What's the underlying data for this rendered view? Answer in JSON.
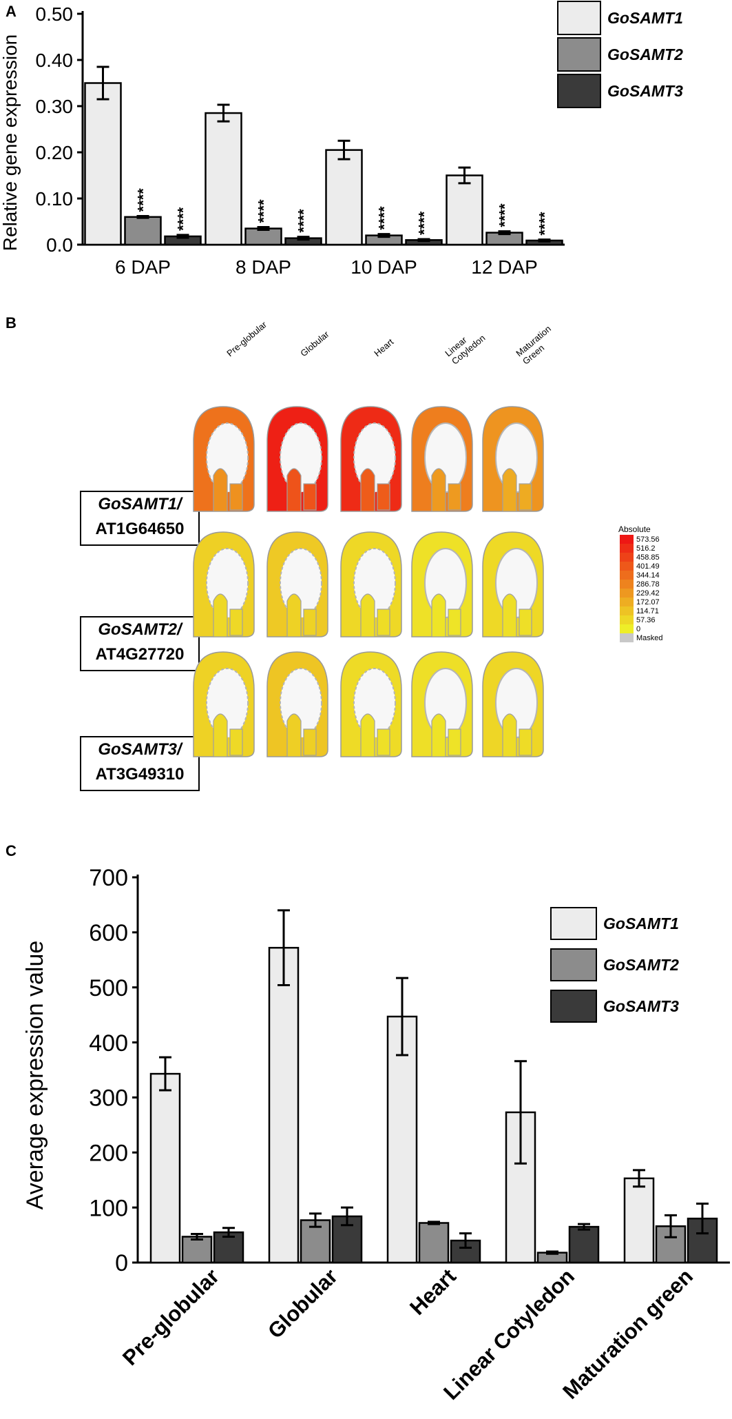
{
  "colors": {
    "gosamt1": "#ececec",
    "gosamt2": "#8c8c8c",
    "gosamt3": "#3a3a3a"
  },
  "panel_a": {
    "letter": "A",
    "chart_data": {
      "type": "bar",
      "title": "",
      "xlabel": "",
      "ylabel": "Relative gene expression",
      "ylim": [
        0,
        0.5
      ],
      "yticks": [
        "0.0",
        "0.10",
        "0.20",
        "0.30",
        "0.40",
        "0.50"
      ],
      "tick_values": [
        0,
        0.1,
        0.2,
        0.3,
        0.4,
        0.5
      ],
      "categories": [
        "6 DAP",
        "8 DAP",
        "10 DAP",
        "12 DAP"
      ],
      "series": [
        {
          "name": "GoSAMT1",
          "values": [
            0.35,
            0.285,
            0.205,
            0.15
          ],
          "errors": [
            0.035,
            0.018,
            0.02,
            0.017
          ],
          "sig": [
            "",
            "",
            "",
            ""
          ]
        },
        {
          "name": "GoSAMT2",
          "values": [
            0.06,
            0.035,
            0.02,
            0.026
          ],
          "errors": [
            0.002,
            0.003,
            0.003,
            0.003
          ],
          "sig": [
            "****",
            "****",
            "****",
            "****"
          ]
        },
        {
          "name": "GoSAMT3",
          "values": [
            0.018,
            0.014,
            0.01,
            0.009
          ],
          "errors": [
            0.003,
            0.003,
            0.002,
            0.002
          ],
          "sig": [
            "****",
            "****",
            "****",
            "****"
          ]
        }
      ],
      "legend": "top-right"
    }
  },
  "panel_b": {
    "letter": "B",
    "stages": [
      "Pre-globular",
      "Globular",
      "Heart",
      "Linear\nCotyledon",
      "Maturation\nGreen"
    ],
    "stage_lines": [
      [
        "Pre-globular"
      ],
      [
        "Globular"
      ],
      [
        "Heart"
      ],
      [
        "Linear",
        "Cotyledon"
      ],
      [
        "Maturation",
        "Green"
      ]
    ],
    "rows": [
      {
        "gene": "GoSAMT1/",
        "locus": "AT1G64650",
        "values": [
          330,
          550,
          520,
          300,
          240
        ]
      },
      {
        "gene": "GoSAMT2/",
        "locus": "AT4G27720",
        "values": [
          80,
          100,
          60,
          35,
          55
        ]
      },
      {
        "gene": "GoSAMT3/",
        "locus": "AT3G49310",
        "values": [
          75,
          110,
          50,
          40,
          65
        ]
      }
    ],
    "scale": {
      "title": "Absolute",
      "labels": [
        "573.56",
        "516.2",
        "458.85",
        "401.49",
        "344.14",
        "286.78",
        "229.42",
        "172.07",
        "114.71",
        "57.36",
        "0"
      ],
      "masked": "Masked"
    }
  },
  "panel_c": {
    "letter": "C",
    "chart_data": {
      "type": "bar",
      "title": "",
      "xlabel": "",
      "ylabel": "Average expression value",
      "ylim": [
        0,
        700
      ],
      "yticks": [
        "0",
        "100",
        "200",
        "300",
        "400",
        "500",
        "600",
        "700"
      ],
      "tick_values": [
        0,
        100,
        200,
        300,
        400,
        500,
        600,
        700
      ],
      "categories": [
        "Pre-globular",
        "Globular",
        "Heart",
        "Linear Cotyledon",
        "Maturation green"
      ],
      "series": [
        {
          "name": "GoSAMT1",
          "values": [
            343,
            572,
            447,
            273,
            153
          ],
          "errors": [
            30,
            68,
            70,
            93,
            15
          ],
          "sig": [
            "",
            "",
            "",
            "",
            ""
          ]
        },
        {
          "name": "GoSAMT2",
          "values": [
            47,
            77,
            72,
            18,
            66
          ],
          "errors": [
            5,
            12,
            2,
            2,
            20
          ],
          "sig": [
            "",
            "",
            "",
            "",
            ""
          ]
        },
        {
          "name": "GoSAMT3",
          "values": [
            55,
            84,
            40,
            65,
            80
          ],
          "errors": [
            8,
            16,
            13,
            5,
            27
          ],
          "sig": [
            "",
            "",
            "",
            "",
            ""
          ]
        }
      ],
      "legend": "right"
    }
  }
}
